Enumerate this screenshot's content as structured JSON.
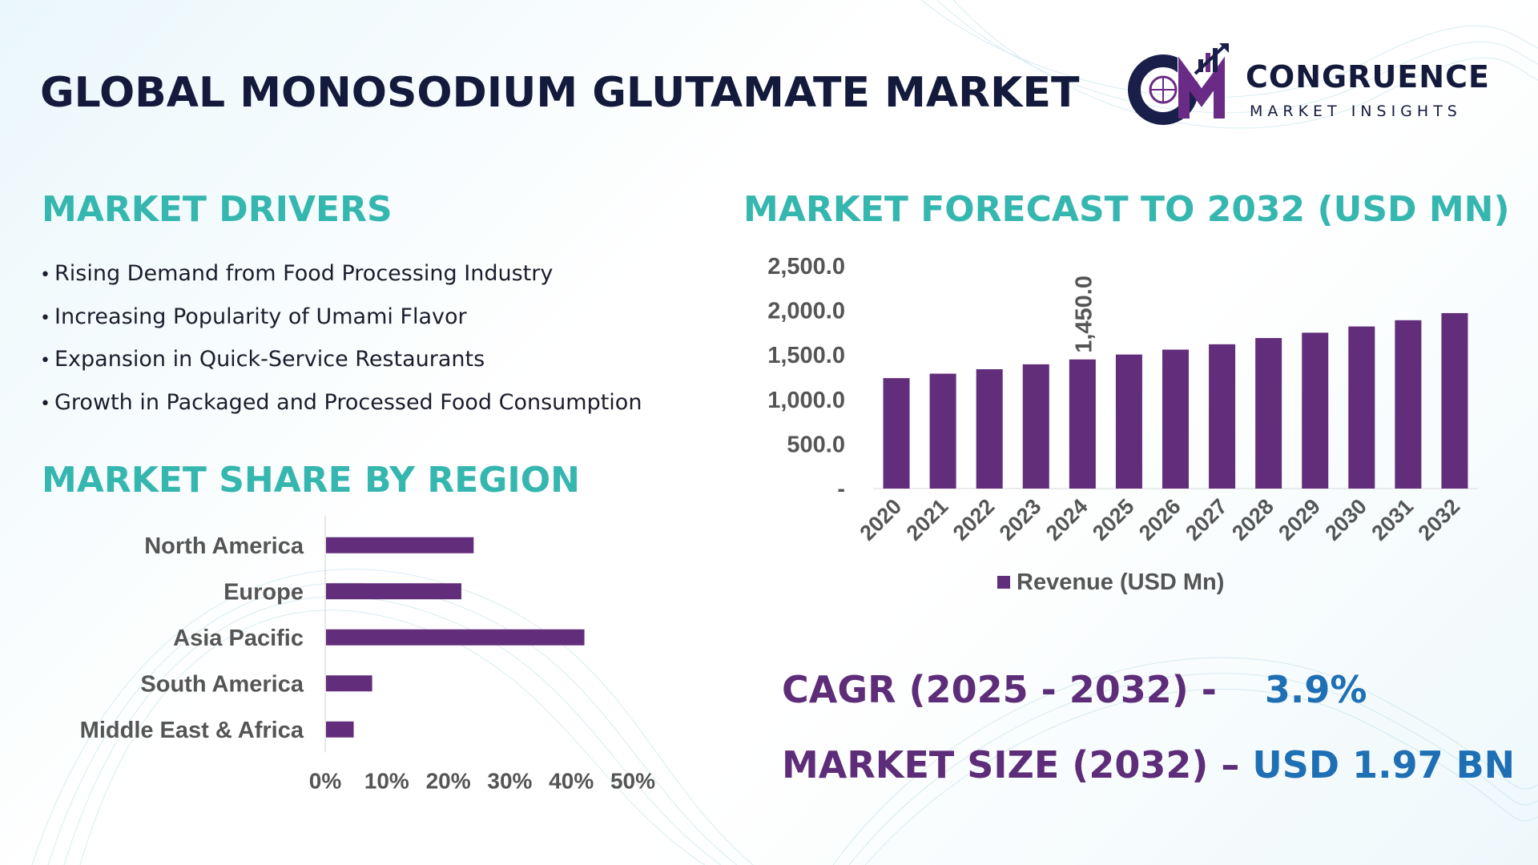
{
  "header": {
    "title": "GLOBAL MONOSODIUM GLUTAMATE MARKET",
    "logo_brand": "CONGRUENCE",
    "logo_tagline": "MARKET INSIGHTS"
  },
  "drivers": {
    "title": "MARKET DRIVERS",
    "items": [
      "Rising Demand from Food Processing Industry",
      "Increasing Popularity of Umami Flavor",
      "Expansion in Quick-Service Restaurants",
      "Growth in Packaged and Processed Food Consumption"
    ]
  },
  "region": {
    "title": "MARKET SHARE BY REGION"
  },
  "forecast": {
    "title": "MARKET FORECAST TO 2032 (USD MN)"
  },
  "summary": {
    "cagr_label": "CAGR (2025 - 2032) -",
    "cagr_value": "3.9%",
    "size_label": "MARKET SIZE (2032) –",
    "size_value": "USD 1.97 BN"
  },
  "colors": {
    "bar": "#622d7a",
    "accent_teal": "#35b7b0",
    "title_navy": "#141a3c",
    "summary_purple": "#5e2d79",
    "summary_blue": "#1f6fb5",
    "logo_purple": "#6a2b86",
    "logo_navy": "#1a1f4a"
  },
  "chart_data": [
    {
      "type": "bar",
      "orientation": "horizontal",
      "categories": [
        "North America",
        "Europe",
        "Asia Pacific",
        "South America",
        "Middle East & Africa"
      ],
      "values": [
        24,
        22,
        42,
        7.5,
        4.5
      ],
      "unit": "%",
      "xlim": [
        0,
        50
      ],
      "x_ticks": [
        "0%",
        "10%",
        "20%",
        "30%",
        "40%",
        "50%"
      ],
      "grid": false
    },
    {
      "type": "bar",
      "categories": [
        "2020",
        "2021",
        "2022",
        "2023",
        "2024",
        "2025",
        "2026",
        "2027",
        "2028",
        "2029",
        "2030",
        "2031",
        "2032"
      ],
      "series": [
        {
          "name": "Revenue (USD Mn)",
          "values": [
            1240,
            1290,
            1340,
            1395,
            1450,
            1505,
            1560,
            1620,
            1690,
            1750,
            1820,
            1890,
            1970
          ]
        }
      ],
      "ylim": [
        0,
        2500
      ],
      "y_ticks": [
        "-",
        "500.0",
        "1,000.0",
        "1,500.0",
        "2,000.0",
        "2,500.0"
      ],
      "data_labels": [
        {
          "category": "2024",
          "text": "1,450.0"
        }
      ],
      "legend_position": "bottom",
      "grid": false
    }
  ]
}
